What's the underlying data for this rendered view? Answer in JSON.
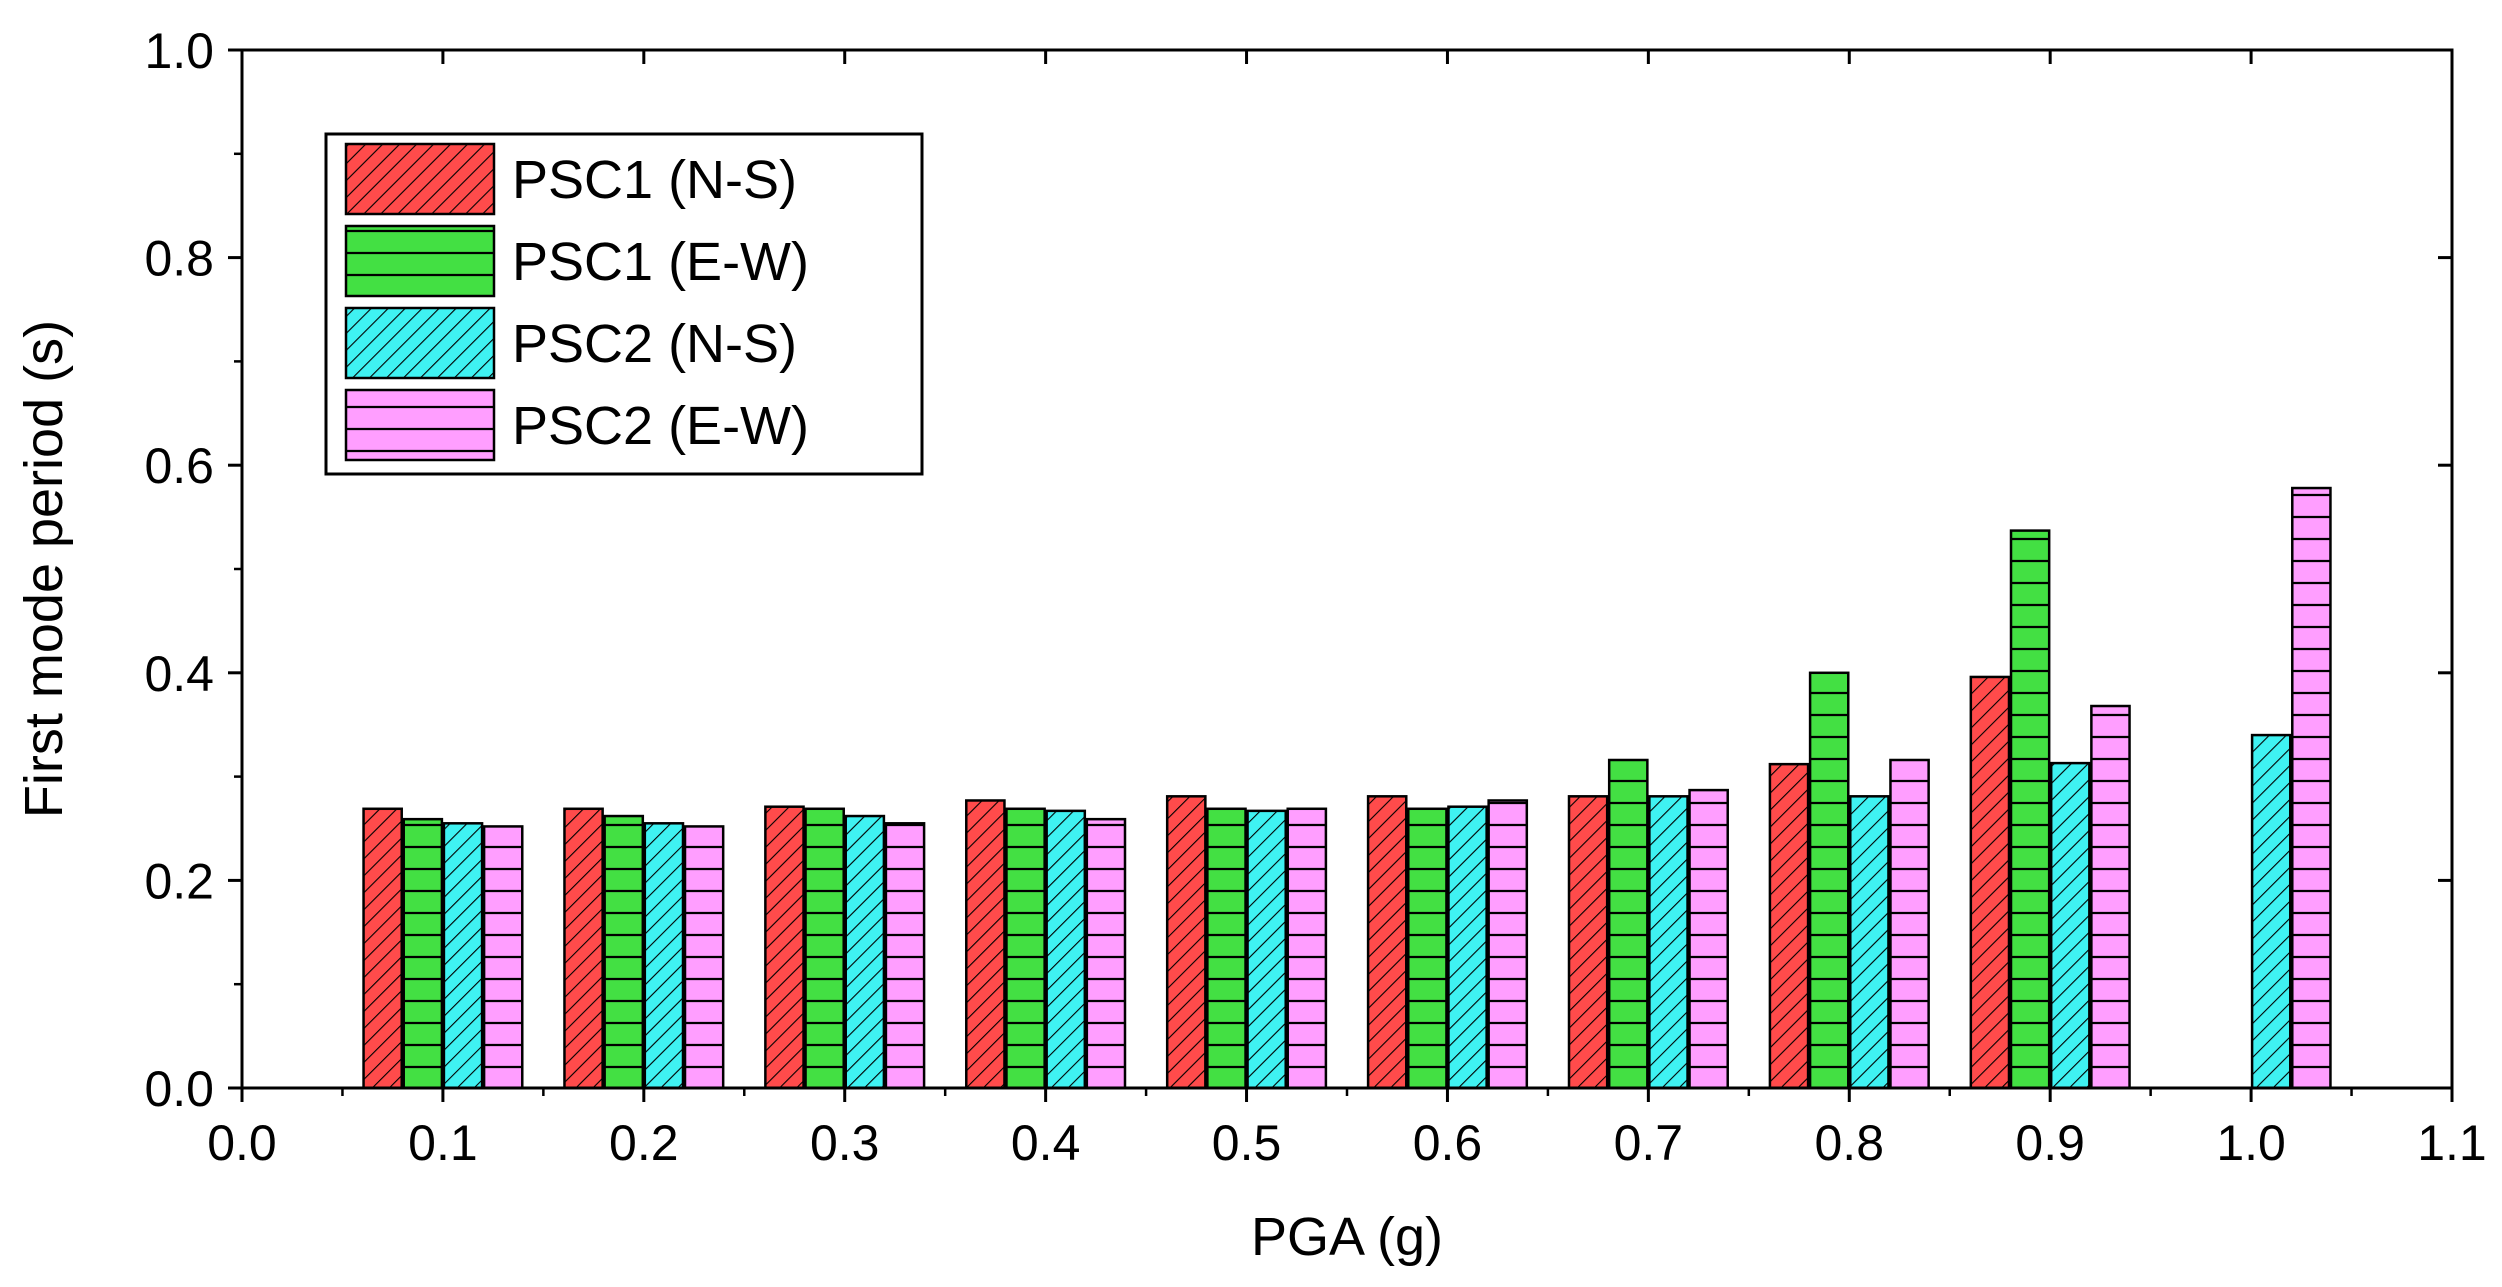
{
  "chart_data": {
    "type": "bar",
    "xlabel": "PGA (g)",
    "ylabel": "First mode period (s)",
    "xlim": [
      0.0,
      1.1
    ],
    "ylim": [
      0.0,
      1.0
    ],
    "x_ticks": [
      "0.0",
      "0.1",
      "0.2",
      "0.3",
      "0.4",
      "0.5",
      "0.6",
      "0.7",
      "0.8",
      "0.9",
      "1.0",
      "1.1"
    ],
    "y_ticks": [
      "0.0",
      "0.2",
      "0.4",
      "0.6",
      "0.8",
      "1.0"
    ],
    "categories": [
      0.1,
      0.2,
      0.3,
      0.4,
      0.5,
      0.6,
      0.7,
      0.8,
      0.9,
      1.0
    ],
    "grid": false,
    "legend_position": "top-left",
    "series": [
      {
        "name": "PSC1 (N-S)",
        "color": "#ff4b4b",
        "pattern": "diagonal",
        "values": [
          0.269,
          0.269,
          0.271,
          0.277,
          0.281,
          0.281,
          0.281,
          0.312,
          0.396,
          null
        ]
      },
      {
        "name": "PSC1 (E-W)",
        "color": "#43e043",
        "pattern": "horizontal",
        "values": [
          0.259,
          0.262,
          0.269,
          0.269,
          0.269,
          0.269,
          0.316,
          0.4,
          0.537,
          null
        ]
      },
      {
        "name": "PSC2 (N-S)",
        "color": "#3ff2f2",
        "pattern": "diagonal",
        "values": [
          0.255,
          0.255,
          0.262,
          0.267,
          0.267,
          0.271,
          0.281,
          0.281,
          0.313,
          0.34
        ]
      },
      {
        "name": "PSC2 (E-W)",
        "color": "#ff9eff",
        "pattern": "horizontal",
        "values": [
          0.252,
          0.252,
          0.255,
          0.259,
          0.269,
          0.277,
          0.287,
          0.316,
          0.368,
          0.578
        ]
      }
    ]
  }
}
